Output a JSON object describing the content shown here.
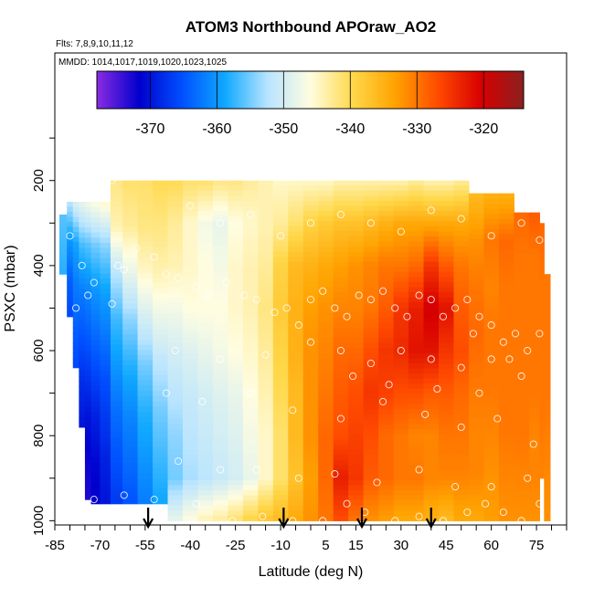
{
  "chart_data": {
    "type": "heatmap",
    "title": "ATOM3 Northbound APOraw_AO2",
    "subtitle_flights": "Flts: 7,8,9,10,11,12",
    "subtitle_dates": "MMDD: 1014,1017,1019,1020,1023,1025",
    "xlabel": "Latitude (deg N)",
    "ylabel": "PSXC (mbar)",
    "x_ticks": [
      "-85",
      "-70",
      "-55",
      "-40",
      "-25",
      "-10",
      "5",
      "15",
      "30",
      "45",
      "60",
      "75"
    ],
    "x_tick_values": [
      -85,
      -70,
      -55,
      -40,
      -25,
      -10,
      5,
      15,
      30,
      45,
      60,
      75
    ],
    "y_ticks": [
      "200",
      "400",
      "600",
      "800",
      "1000"
    ],
    "y_tick_values": [
      200,
      400,
      600,
      800,
      1000
    ],
    "xlim": [
      -85,
      85
    ],
    "ylim": [
      1010,
      -100
    ],
    "colorbar": {
      "ticks": [
        "-370",
        "-360",
        "-350",
        "-340",
        "-330",
        "-320"
      ],
      "tick_values": [
        -370,
        -360,
        -350,
        -340,
        -330,
        -320
      ],
      "range": [
        -378,
        -314
      ],
      "colors": [
        "#8a2be2",
        "#0000cd",
        "#0050ff",
        "#10a8ff",
        "#b8e4ff",
        "#fffde0",
        "#ffd84a",
        "#ffa200",
        "#ff4a00",
        "#d80000",
        "#8b2020"
      ]
    },
    "arrow_latitudes": [
      -54,
      -9,
      17,
      40
    ],
    "columns": [
      {
        "lat": -82,
        "ptop": 280,
        "pbot": 420,
        "anchors": [
          -356,
          -358
        ]
      },
      {
        "lat": -80,
        "ptop": 250,
        "pbot": 520,
        "anchors": [
          -352,
          -360,
          -364,
          -366
        ]
      },
      {
        "lat": -78,
        "ptop": 250,
        "pbot": 640,
        "anchors": [
          -349,
          -359,
          -362,
          -364,
          -366
        ]
      },
      {
        "lat": -76,
        "ptop": 250,
        "pbot": 780,
        "anchors": [
          -348,
          -357,
          -362,
          -365,
          -368,
          -370
        ]
      },
      {
        "lat": -74,
        "ptop": 250,
        "pbot": 950,
        "anchors": [
          -347,
          -356,
          -361,
          -364,
          -367,
          -370,
          -372,
          -373
        ]
      },
      {
        "lat": -72,
        "ptop": 250,
        "pbot": 960,
        "anchors": [
          -346,
          -355,
          -360,
          -363,
          -366,
          -369,
          -371,
          -372
        ]
      },
      {
        "lat": -68,
        "ptop": 250,
        "pbot": 960,
        "anchors": [
          -345,
          -354,
          -359,
          -362,
          -365,
          -367,
          -369,
          -370
        ]
      },
      {
        "lat": -65,
        "ptop": 200,
        "pbot": 960,
        "anchors": [
          -342,
          -344,
          -352,
          -357,
          -360,
          -363,
          -365,
          -367
        ]
      },
      {
        "lat": -60,
        "ptop": 200,
        "pbot": 960,
        "anchors": [
          -341,
          -343,
          -348,
          -354,
          -358,
          -361,
          -363,
          -365
        ]
      },
      {
        "lat": -55,
        "ptop": 200,
        "pbot": 960,
        "anchors": [
          -341,
          -342,
          -345,
          -350,
          -355,
          -358,
          -360,
          -362
        ]
      },
      {
        "lat": -50,
        "ptop": 200,
        "pbot": 960,
        "anchors": [
          -340,
          -342,
          -344,
          -348,
          -352,
          -355,
          -357,
          -359
        ]
      },
      {
        "lat": -45,
        "ptop": 200,
        "pbot": 1000,
        "anchors": [
          -340,
          -343,
          -344,
          -347,
          -350,
          -352,
          -354,
          -355,
          -348
        ]
      },
      {
        "lat": -40,
        "ptop": 200,
        "pbot": 1000,
        "anchors": [
          -341,
          -345,
          -345,
          -346,
          -349,
          -351,
          -352,
          -353,
          -346
        ]
      },
      {
        "lat": -35,
        "ptop": 200,
        "pbot": 1000,
        "anchors": [
          -341,
          -347,
          -346,
          -346,
          -348,
          -350,
          -351,
          -352,
          -344
        ]
      },
      {
        "lat": -30,
        "ptop": 200,
        "pbot": 1000,
        "anchors": [
          -342,
          -348,
          -347,
          -346,
          -347,
          -349,
          -350,
          -351,
          -343
        ]
      },
      {
        "lat": -25,
        "ptop": 200,
        "pbot": 1000,
        "anchors": [
          -342,
          -346,
          -345,
          -345,
          -346,
          -348,
          -349,
          -350,
          -341
        ]
      },
      {
        "lat": -20,
        "ptop": 200,
        "pbot": 1000,
        "anchors": [
          -343,
          -345,
          -344,
          -344,
          -345,
          -346,
          -347,
          -348,
          -339
        ]
      },
      {
        "lat": -15,
        "ptop": 200,
        "pbot": 1000,
        "anchors": [
          -344,
          -344,
          -343,
          -342,
          -343,
          -344,
          -345,
          -345,
          -337
        ]
      },
      {
        "lat": -10,
        "ptop": 200,
        "pbot": 1000,
        "anchors": [
          -345,
          -343,
          -339,
          -338,
          -339,
          -340,
          -341,
          -341,
          -336
        ]
      },
      {
        "lat": -5,
        "ptop": 200,
        "pbot": 1000,
        "anchors": [
          -345,
          -341,
          -336,
          -335,
          -335,
          -336,
          -336,
          -337,
          -334
        ]
      },
      {
        "lat": 0,
        "ptop": 200,
        "pbot": 1000,
        "anchors": [
          -345,
          -339,
          -335,
          -333,
          -332,
          -332,
          -332,
          -333,
          -332
        ]
      },
      {
        "lat": 5,
        "ptop": 200,
        "pbot": 1000,
        "anchors": [
          -345,
          -338,
          -334,
          -332,
          -331,
          -330,
          -329,
          -329,
          -330
        ]
      },
      {
        "lat": 10,
        "ptop": 200,
        "pbot": 1000,
        "anchors": [
          -344,
          -337,
          -333,
          -331,
          -329,
          -328,
          -327,
          -323,
          -327
        ]
      },
      {
        "lat": 15,
        "ptop": 200,
        "pbot": 1000,
        "anchors": [
          -344,
          -337,
          -332,
          -331,
          -329,
          -327,
          -326,
          -325,
          -330
        ]
      },
      {
        "lat": 20,
        "ptop": 200,
        "pbot": 1000,
        "anchors": [
          -344,
          -336,
          -331,
          -330,
          -327,
          -325,
          -327,
          -328,
          -332
        ]
      },
      {
        "lat": 25,
        "ptop": 200,
        "pbot": 1000,
        "anchors": [
          -344,
          -335,
          -330,
          -328,
          -325,
          -326,
          -329,
          -329,
          -333
        ]
      },
      {
        "lat": 30,
        "ptop": 200,
        "pbot": 1000,
        "anchors": [
          -344,
          -334,
          -330,
          -325,
          -324,
          -327,
          -330,
          -330,
          -334
        ]
      },
      {
        "lat": 35,
        "ptop": 200,
        "pbot": 1000,
        "anchors": [
          -343,
          -334,
          -329,
          -323,
          -322,
          -327,
          -331,
          -330,
          -334
        ]
      },
      {
        "lat": 40,
        "ptop": 200,
        "pbot": 1000,
        "anchors": [
          -344,
          -334,
          -325,
          -320,
          -322,
          -328,
          -331,
          -331,
          -335
        ]
      },
      {
        "lat": 45,
        "ptop": 200,
        "pbot": 1000,
        "anchors": [
          -344,
          -334,
          -328,
          -322,
          -325,
          -328,
          -330,
          -331,
          -336
        ]
      },
      {
        "lat": 50,
        "ptop": 200,
        "pbot": 1000,
        "anchors": [
          -343,
          -334,
          -330,
          -328,
          -327,
          -329,
          -330,
          -331,
          -334
        ]
      },
      {
        "lat": 55,
        "ptop": 230,
        "pbot": 1000,
        "anchors": [
          -336,
          -332,
          -330,
          -329,
          -330,
          -331,
          -331,
          -334
        ]
      },
      {
        "lat": 60,
        "ptop": 230,
        "pbot": 1000,
        "anchors": [
          -335,
          -330,
          -331,
          -330,
          -330,
          -331,
          -332,
          -333
        ]
      },
      {
        "lat": 65,
        "ptop": 230,
        "pbot": 1000,
        "anchors": [
          -335,
          -329,
          -330,
          -330,
          -330,
          -330,
          -331,
          -332
        ]
      },
      {
        "lat": 70,
        "ptop": 275,
        "pbot": 1000,
        "anchors": [
          -329,
          -330,
          -330,
          -330,
          -330,
          -330,
          -331,
          -332
        ]
      },
      {
        "lat": 75,
        "ptop": 275,
        "pbot": 1000,
        "anchors": [
          -328,
          -330,
          -330,
          -330,
          -330,
          -331,
          -331,
          -332
        ]
      },
      {
        "lat": 77,
        "ptop": 300,
        "pbot": 900,
        "anchors": [
          -329,
          -330,
          -330,
          -330,
          -331
        ]
      },
      {
        "lat": 78,
        "ptop": 420,
        "pbot": 1000,
        "anchors": [
          -330,
          -330,
          -330,
          -331,
          -332
        ]
      }
    ],
    "points": [
      [
        -80,
        330
      ],
      [
        -76,
        400
      ],
      [
        -72,
        440
      ],
      [
        -74,
        470
      ],
      [
        -78,
        500
      ],
      [
        -66,
        490
      ],
      [
        -64,
        400
      ],
      [
        -62,
        410
      ],
      [
        -58,
        360
      ],
      [
        -52,
        380
      ],
      [
        -48,
        420
      ],
      [
        -44,
        430
      ],
      [
        -38,
        450
      ],
      [
        -34,
        470
      ],
      [
        -28,
        440
      ],
      [
        -22,
        470
      ],
      [
        -18,
        480
      ],
      [
        -12,
        510
      ],
      [
        -8,
        500
      ],
      [
        -4,
        540
      ],
      [
        0,
        480
      ],
      [
        4,
        460
      ],
      [
        8,
        500
      ],
      [
        12,
        520
      ],
      [
        16,
        470
      ],
      [
        20,
        480
      ],
      [
        24,
        460
      ],
      [
        28,
        500
      ],
      [
        32,
        520
      ],
      [
        36,
        470
      ],
      [
        40,
        480
      ],
      [
        44,
        520
      ],
      [
        48,
        500
      ],
      [
        52,
        480
      ],
      [
        56,
        520
      ],
      [
        60,
        540
      ],
      [
        64,
        580
      ],
      [
        68,
        560
      ],
      [
        72,
        600
      ],
      [
        76,
        560
      ],
      [
        -66,
        200
      ],
      [
        -60,
        190
      ],
      [
        -40,
        260
      ],
      [
        -30,
        300
      ],
      [
        -20,
        280
      ],
      [
        -10,
        330
      ],
      [
        0,
        300
      ],
      [
        10,
        280
      ],
      [
        20,
        300
      ],
      [
        30,
        320
      ],
      [
        40,
        270
      ],
      [
        50,
        290
      ],
      [
        60,
        330
      ],
      [
        70,
        300
      ],
      [
        76,
        340
      ],
      [
        -45,
        600
      ],
      [
        -30,
        620
      ],
      [
        -15,
        610
      ],
      [
        0,
        580
      ],
      [
        10,
        600
      ],
      [
        20,
        630
      ],
      [
        30,
        600
      ],
      [
        40,
        620
      ],
      [
        50,
        640
      ],
      [
        60,
        620
      ],
      [
        70,
        660
      ],
      [
        -48,
        700
      ],
      [
        -36,
        720
      ],
      [
        -20,
        700
      ],
      [
        -6,
        740
      ],
      [
        10,
        760
      ],
      [
        24,
        720
      ],
      [
        38,
        750
      ],
      [
        50,
        780
      ],
      [
        62,
        760
      ],
      [
        74,
        820
      ],
      [
        -44,
        860
      ],
      [
        -30,
        880
      ],
      [
        -18,
        880
      ],
      [
        -4,
        900
      ],
      [
        8,
        890
      ],
      [
        22,
        910
      ],
      [
        36,
        880
      ],
      [
        48,
        920
      ],
      [
        60,
        920
      ],
      [
        72,
        900
      ],
      [
        -72,
        950
      ],
      [
        -62,
        940
      ],
      [
        -52,
        950
      ],
      [
        -38,
        960
      ],
      [
        -26,
        1000
      ],
      [
        -16,
        990
      ],
      [
        -6,
        1000
      ],
      [
        4,
        1000
      ],
      [
        12,
        960
      ],
      [
        18,
        980
      ],
      [
        28,
        1000
      ],
      [
        36,
        990
      ],
      [
        44,
        1000
      ],
      [
        52,
        980
      ],
      [
        58,
        960
      ],
      [
        64,
        980
      ],
      [
        70,
        1000
      ],
      [
        76,
        960
      ],
      [
        14,
        660
      ],
      [
        26,
        680
      ],
      [
        42,
        690
      ],
      [
        56,
        700
      ],
      [
        66,
        620
      ],
      [
        54,
        560
      ]
    ]
  }
}
